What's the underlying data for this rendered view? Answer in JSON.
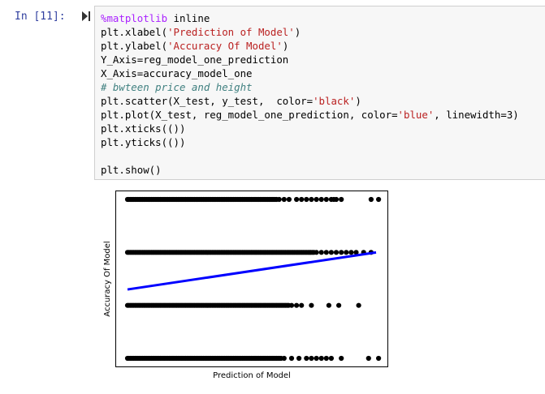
{
  "cell": {
    "prompt": "In [11]:",
    "code": [
      {
        "parts": [
          {
            "cls": "magic",
            "t": "%matplotlib"
          },
          {
            "cls": "",
            "t": " inline"
          }
        ]
      },
      {
        "parts": [
          {
            "cls": "",
            "t": "plt.xlabel("
          },
          {
            "cls": "str",
            "t": "'Prediction of Model'"
          },
          {
            "cls": "",
            "t": ")"
          }
        ]
      },
      {
        "parts": [
          {
            "cls": "",
            "t": "plt.ylabel("
          },
          {
            "cls": "str",
            "t": "'Accuracy Of Model'"
          },
          {
            "cls": "",
            "t": ")"
          }
        ]
      },
      {
        "parts": [
          {
            "cls": "",
            "t": "Y_Axis=reg_model_one_prediction"
          }
        ]
      },
      {
        "parts": [
          {
            "cls": "",
            "t": "X_Axis=accuracy_model_one"
          }
        ]
      },
      {
        "parts": [
          {
            "cls": "comment",
            "t": "# bwteen price and height"
          }
        ]
      },
      {
        "parts": [
          {
            "cls": "",
            "t": "plt.scatter(X_test, y_test,  color="
          },
          {
            "cls": "str",
            "t": "'black'"
          },
          {
            "cls": "",
            "t": ")"
          }
        ]
      },
      {
        "parts": [
          {
            "cls": "",
            "t": "plt.plot(X_test, reg_model_one_prediction, color="
          },
          {
            "cls": "str",
            "t": "'blue'"
          },
          {
            "cls": "",
            "t": ", linewidth=3)"
          }
        ]
      },
      {
        "parts": [
          {
            "cls": "",
            "t": "plt.xticks(())"
          }
        ]
      },
      {
        "parts": [
          {
            "cls": "",
            "t": "plt.yticks(())"
          }
        ]
      },
      {
        "parts": [
          {
            "cls": "",
            "t": ""
          }
        ]
      },
      {
        "parts": [
          {
            "cls": "",
            "t": "plt.show()"
          }
        ]
      }
    ]
  },
  "chart_data": {
    "type": "scatter",
    "xlabel": "Prediction of Model",
    "ylabel": "Accuracy Of Model",
    "xlim": [
      0,
      10
    ],
    "ylim": [
      -0.2,
      3.2
    ],
    "xticks": [],
    "yticks": [],
    "grid": false,
    "colors": {
      "scatter": "#000000",
      "line": "#0000ff"
    },
    "scatter_rows": [
      {
        "y": 3,
        "dense_range": [
          0,
          6.0
        ],
        "sparse_x": [
          6.1,
          6.3,
          6.5,
          6.8,
          7.0,
          7.2,
          7.4,
          7.6,
          7.8,
          8.0,
          8.2,
          8.3,
          8.4,
          8.6,
          9.8,
          10.1
        ]
      },
      {
        "y": 2,
        "dense_range": [
          0,
          7.5
        ],
        "sparse_x": [
          7.6,
          7.8,
          8.0,
          8.2,
          8.4,
          8.6,
          8.8,
          9.0,
          9.2,
          9.5,
          9.8
        ]
      },
      {
        "y": 1,
        "dense_range": [
          0,
          6.5
        ],
        "sparse_x": [
          6.6,
          6.8,
          7.0,
          7.4,
          8.1,
          8.5,
          9.3
        ]
      },
      {
        "y": 0,
        "dense_range": [
          0,
          6.2
        ],
        "sparse_x": [
          6.3,
          6.6,
          6.9,
          7.2,
          7.4,
          7.6,
          7.8,
          8.0,
          8.2,
          8.6,
          9.7,
          10.1
        ]
      }
    ],
    "line": {
      "x": [
        0,
        10
      ],
      "y": [
        1.3,
        2.0
      ]
    }
  }
}
